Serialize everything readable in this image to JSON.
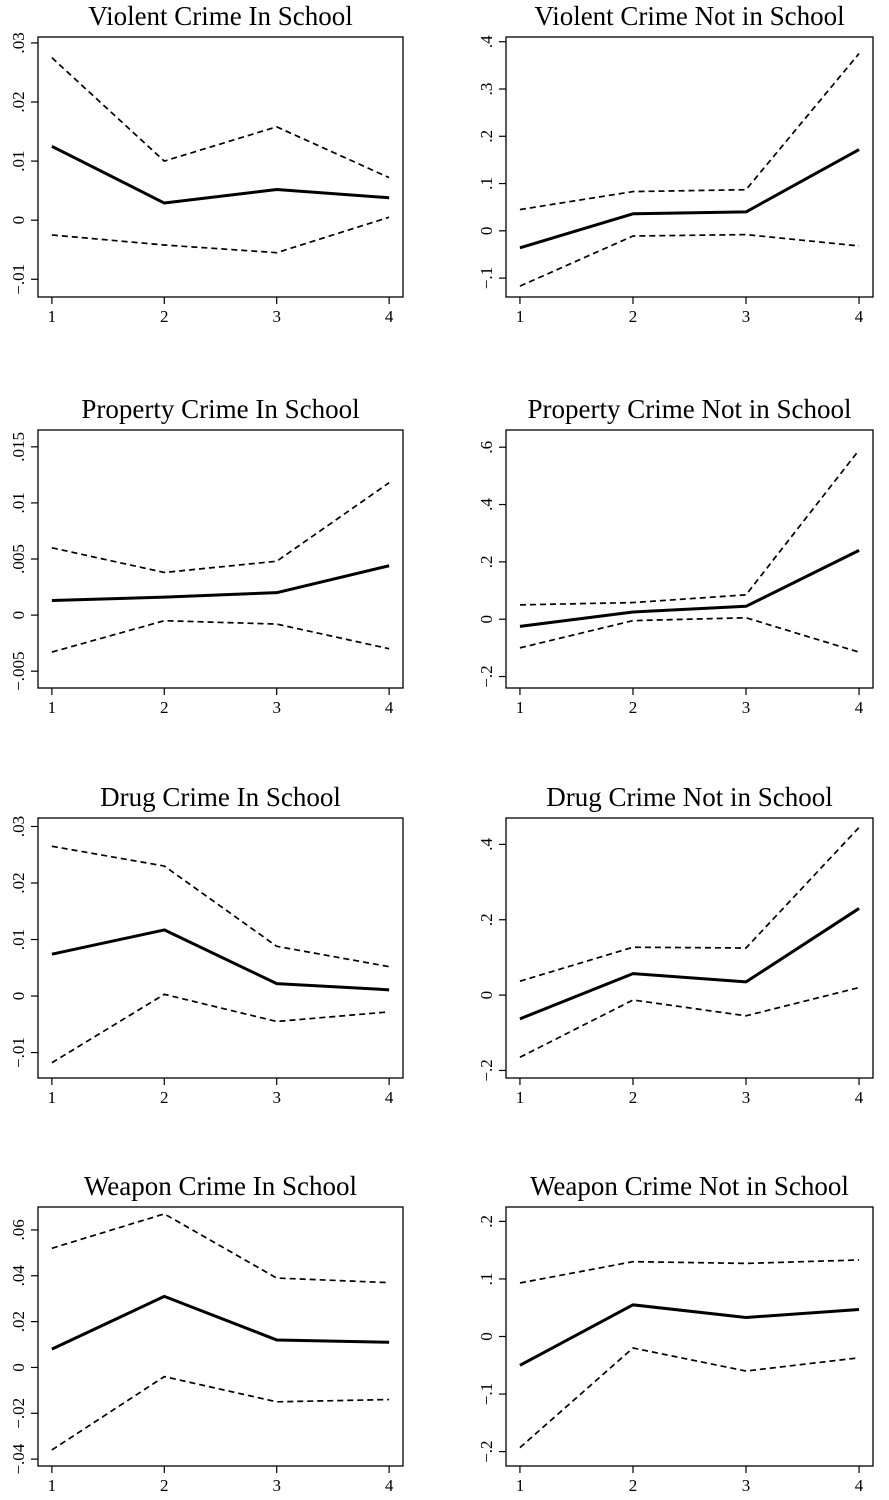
{
  "chart_data": [
    {
      "type": "line",
      "title": "Violent Crime In School",
      "x": [
        1,
        2,
        3,
        4
      ],
      "xticks": [
        "1",
        "2",
        "3",
        "4"
      ],
      "ylim": [
        -0.013,
        0.031
      ],
      "yticks": [
        -0.01,
        0,
        0.01,
        0.02,
        0.03
      ],
      "ytick_labels": [
        "−.01",
        "0",
        ".01",
        ".02",
        ".03"
      ],
      "series": [
        {
          "style": "dashed",
          "values": [
            0.0275,
            0.01,
            0.0158,
            0.0072
          ]
        },
        {
          "style": "solid",
          "values": [
            0.0125,
            0.0029,
            0.0052,
            0.0038
          ]
        },
        {
          "style": "dashed",
          "values": [
            -0.0025,
            -0.0042,
            -0.0055,
            0.0005
          ]
        }
      ]
    },
    {
      "type": "line",
      "title": "Violent Crime Not in School",
      "x": [
        1,
        2,
        3,
        4
      ],
      "xticks": [
        "1",
        "2",
        "3",
        "4"
      ],
      "ylim": [
        -0.14,
        0.41
      ],
      "yticks": [
        -0.1,
        0,
        0.1,
        0.2,
        0.3,
        0.4
      ],
      "ytick_labels": [
        "−.1",
        "0",
        ".1",
        ".2",
        ".3",
        ".4"
      ],
      "series": [
        {
          "style": "dashed",
          "values": [
            0.045,
            0.083,
            0.087,
            0.375
          ]
        },
        {
          "style": "solid",
          "values": [
            -0.036,
            0.036,
            0.04,
            0.172
          ]
        },
        {
          "style": "dashed",
          "values": [
            -0.117,
            -0.011,
            -0.008,
            -0.032
          ]
        }
      ]
    },
    {
      "type": "line",
      "title": "Property Crime In School",
      "x": [
        1,
        2,
        3,
        4
      ],
      "xticks": [
        "1",
        "2",
        "3",
        "4"
      ],
      "ylim": [
        -0.0065,
        0.0165
      ],
      "yticks": [
        -0.005,
        0,
        0.005,
        0.01,
        0.015
      ],
      "ytick_labels": [
        "−.005",
        "0",
        ".005",
        ".01",
        ".015"
      ],
      "series": [
        {
          "style": "dashed",
          "values": [
            0.006,
            0.0038,
            0.0048,
            0.0118
          ]
        },
        {
          "style": "solid",
          "values": [
            0.0013,
            0.0016,
            0.002,
            0.0044
          ]
        },
        {
          "style": "dashed",
          "values": [
            -0.0033,
            -0.0005,
            -0.0008,
            -0.003
          ]
        }
      ]
    },
    {
      "type": "line",
      "title": "Property Crime Not in School",
      "x": [
        1,
        2,
        3,
        4
      ],
      "xticks": [
        "1",
        "2",
        "3",
        "4"
      ],
      "ylim": [
        -0.24,
        0.66
      ],
      "yticks": [
        -0.2,
        0,
        0.2,
        0.4,
        0.6
      ],
      "ytick_labels": [
        "−.2",
        "0",
        ".2",
        ".4",
        ".6"
      ],
      "series": [
        {
          "style": "dashed",
          "values": [
            0.05,
            0.058,
            0.085,
            0.59
          ]
        },
        {
          "style": "solid",
          "values": [
            -0.025,
            0.025,
            0.045,
            0.24
          ]
        },
        {
          "style": "dashed",
          "values": [
            -0.1,
            -0.005,
            0.005,
            -0.115
          ]
        }
      ]
    },
    {
      "type": "line",
      "title": "Drug Crime In School",
      "x": [
        1,
        2,
        3,
        4
      ],
      "xticks": [
        "1",
        "2",
        "3",
        "4"
      ],
      "ylim": [
        -0.0145,
        0.0315
      ],
      "yticks": [
        -0.01,
        0,
        0.01,
        0.02,
        0.03
      ],
      "ytick_labels": [
        "−.01",
        "0",
        ".01",
        ".02",
        ".03"
      ],
      "series": [
        {
          "style": "dashed",
          "values": [
            0.0265,
            0.023,
            0.0088,
            0.0052
          ]
        },
        {
          "style": "solid",
          "values": [
            0.0074,
            0.0117,
            0.0022,
            0.0011
          ]
        },
        {
          "style": "dashed",
          "values": [
            -0.0118,
            0.0003,
            -0.0045,
            -0.0028
          ]
        }
      ]
    },
    {
      "type": "line",
      "title": "Drug Crime Not in School",
      "x": [
        1,
        2,
        3,
        4
      ],
      "xticks": [
        "1",
        "2",
        "3",
        "4"
      ],
      "ylim": [
        -0.22,
        0.47
      ],
      "yticks": [
        -0.2,
        0,
        0.2,
        0.4
      ],
      "ytick_labels": [
        "−.2",
        "0",
        ".2",
        ".4"
      ],
      "series": [
        {
          "style": "dashed",
          "values": [
            0.037,
            0.127,
            0.125,
            0.445
          ]
        },
        {
          "style": "solid",
          "values": [
            -0.063,
            0.057,
            0.035,
            0.23
          ]
        },
        {
          "style": "dashed",
          "values": [
            -0.165,
            -0.013,
            -0.055,
            0.02
          ]
        }
      ]
    },
    {
      "type": "line",
      "title": "Weapon Crime In School",
      "x": [
        1,
        2,
        3,
        4
      ],
      "xticks": [
        "1",
        "2",
        "3",
        "4"
      ],
      "ylim": [
        -0.043,
        0.07
      ],
      "yticks": [
        -0.04,
        -0.02,
        0,
        0.02,
        0.04,
        0.06
      ],
      "ytick_labels": [
        "−.04",
        "−.02",
        "0",
        ".02",
        ".04",
        ".06"
      ],
      "series": [
        {
          "style": "dashed",
          "values": [
            0.052,
            0.067,
            0.039,
            0.037
          ]
        },
        {
          "style": "solid",
          "values": [
            0.008,
            0.031,
            0.012,
            0.011
          ]
        },
        {
          "style": "dashed",
          "values": [
            -0.036,
            -0.004,
            -0.015,
            -0.014
          ]
        }
      ]
    },
    {
      "type": "line",
      "title": "Weapon Crime Not in School",
      "x": [
        1,
        2,
        3,
        4
      ],
      "xticks": [
        "1",
        "2",
        "3",
        "4"
      ],
      "ylim": [
        -0.225,
        0.225
      ],
      "yticks": [
        -0.2,
        -0.1,
        0,
        0.1,
        0.2
      ],
      "ytick_labels": [
        "−.2",
        "−.1",
        "0",
        ".1",
        ".2"
      ],
      "series": [
        {
          "style": "dashed",
          "values": [
            0.093,
            0.13,
            0.127,
            0.133
          ]
        },
        {
          "style": "solid",
          "values": [
            -0.05,
            0.055,
            0.033,
            0.047
          ]
        },
        {
          "style": "dashed",
          "values": [
            -0.193,
            -0.02,
            -0.06,
            -0.037
          ]
        }
      ]
    }
  ]
}
